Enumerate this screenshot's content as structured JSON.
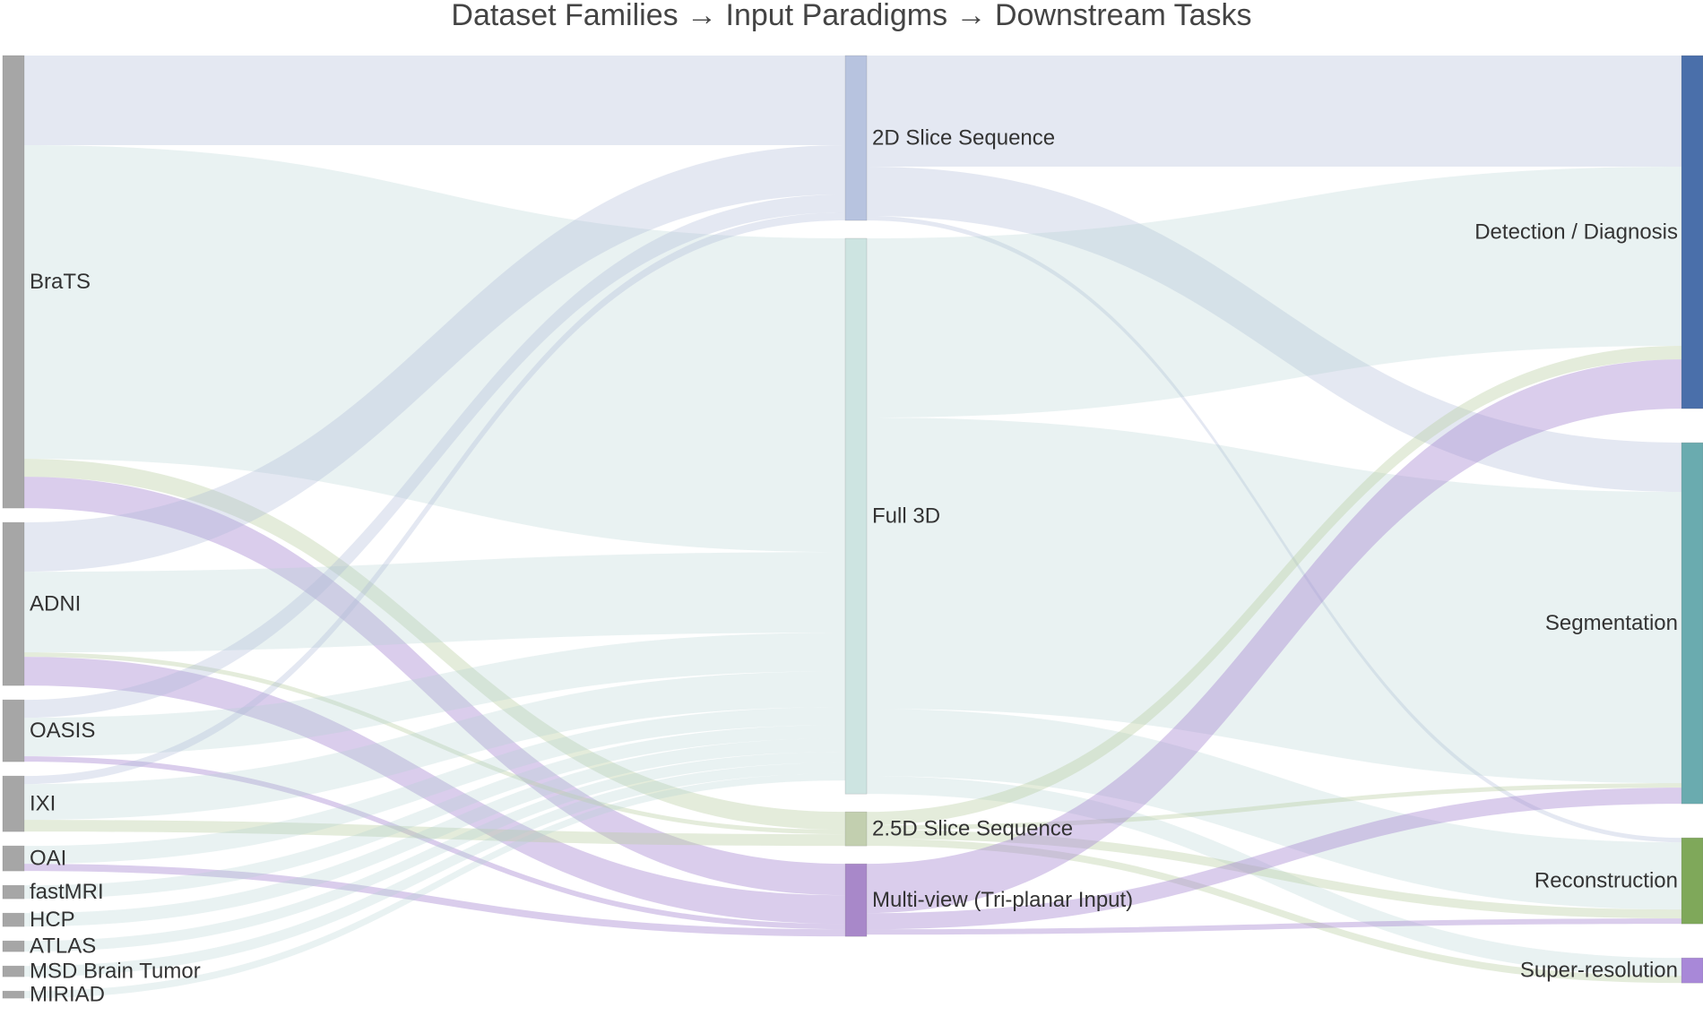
{
  "title": "Dataset Families → Input Paradigms → Downstream Tasks",
  "chart_data": {
    "type": "sankey",
    "columns": [
      "Dataset Families",
      "Input Paradigms",
      "Downstream Tasks"
    ],
    "nodes": [
      {
        "id": "brats",
        "label": "BraTS",
        "column": 0,
        "color": "#a6a6a6"
      },
      {
        "id": "adni",
        "label": "ADNI",
        "column": 0,
        "color": "#a6a6a6"
      },
      {
        "id": "oasis",
        "label": "OASIS",
        "column": 0,
        "color": "#a6a6a6"
      },
      {
        "id": "ixi",
        "label": "IXI",
        "column": 0,
        "color": "#a6a6a6"
      },
      {
        "id": "oai",
        "label": "OAI",
        "column": 0,
        "color": "#a6a6a6"
      },
      {
        "id": "fastmri",
        "label": "fastMRI",
        "column": 0,
        "color": "#a6a6a6"
      },
      {
        "id": "hcp",
        "label": "HCP",
        "column": 0,
        "color": "#a6a6a6"
      },
      {
        "id": "atlas",
        "label": "ATLAS",
        "column": 0,
        "color": "#a6a6a6"
      },
      {
        "id": "msd",
        "label": "MSD Brain Tumor",
        "column": 0,
        "color": "#a6a6a6"
      },
      {
        "id": "miriad",
        "label": "MIRIAD",
        "column": 0,
        "color": "#a6a6a6"
      },
      {
        "id": "p2d",
        "label": "2D Slice Sequence",
        "column": 1,
        "color": "#b7c3df"
      },
      {
        "id": "p3d",
        "label": "Full 3D",
        "column": 1,
        "color": "#cde4e1"
      },
      {
        "id": "p25d",
        "label": "2.5D Slice Sequence",
        "column": 1,
        "color": "#c2cfaf"
      },
      {
        "id": "pmv",
        "label": "Multi-view (Tri-planar Input)",
        "column": 1,
        "color": "#a888c9"
      },
      {
        "id": "det",
        "label": "Detection / Diagnosis",
        "column": 2,
        "color": "#4a6faa"
      },
      {
        "id": "seg",
        "label": "Segmentation",
        "column": 2,
        "color": "#6aabaf"
      },
      {
        "id": "rec",
        "label": "Reconstruction",
        "column": 2,
        "color": "#7fa85a"
      },
      {
        "id": "sr",
        "label": "Super-resolution",
        "column": 2,
        "color": "#a888d8"
      }
    ],
    "links": [
      {
        "source": "brats",
        "target": "p2d",
        "value": 10
      },
      {
        "source": "brats",
        "target": "p3d",
        "value": 35
      },
      {
        "source": "brats",
        "target": "p25d",
        "value": 2
      },
      {
        "source": "brats",
        "target": "pmv",
        "value": 3.5
      },
      {
        "source": "adni",
        "target": "p2d",
        "value": 5.5
      },
      {
        "source": "adni",
        "target": "p3d",
        "value": 9
      },
      {
        "source": "adni",
        "target": "p25d",
        "value": 0.5
      },
      {
        "source": "adni",
        "target": "pmv",
        "value": 3.2
      },
      {
        "source": "oasis",
        "target": "p2d",
        "value": 2
      },
      {
        "source": "oasis",
        "target": "p3d",
        "value": 4.3
      },
      {
        "source": "oasis",
        "target": "pmv",
        "value": 0.6
      },
      {
        "source": "ixi",
        "target": "p2d",
        "value": 0.9
      },
      {
        "source": "ixi",
        "target": "p3d",
        "value": 4
      },
      {
        "source": "ixi",
        "target": "p25d",
        "value": 1.3
      },
      {
        "source": "oai",
        "target": "p3d",
        "value": 2
      },
      {
        "source": "oai",
        "target": "pmv",
        "value": 0.8
      },
      {
        "source": "fastmri",
        "target": "p3d",
        "value": 1.5
      },
      {
        "source": "hcp",
        "target": "p3d",
        "value": 1.5
      },
      {
        "source": "atlas",
        "target": "p3d",
        "value": 1.2
      },
      {
        "source": "msd",
        "target": "p3d",
        "value": 1.2
      },
      {
        "source": "miriad",
        "target": "p3d",
        "value": 0.8
      },
      {
        "source": "p2d",
        "target": "det",
        "value": 12.4
      },
      {
        "source": "p2d",
        "target": "seg",
        "value": 5.5
      },
      {
        "source": "p2d",
        "target": "rec",
        "value": 0.5
      },
      {
        "source": "p3d",
        "target": "det",
        "value": 20
      },
      {
        "source": "p3d",
        "target": "seg",
        "value": 32.5
      },
      {
        "source": "p3d",
        "target": "rec",
        "value": 7.5
      },
      {
        "source": "p3d",
        "target": "sr",
        "value": 2
      },
      {
        "source": "p25d",
        "target": "det",
        "value": 1.5
      },
      {
        "source": "p25d",
        "target": "seg",
        "value": 0.5
      },
      {
        "source": "p25d",
        "target": "rec",
        "value": 1
      },
      {
        "source": "p25d",
        "target": "sr",
        "value": 0.8
      },
      {
        "source": "pmv",
        "target": "det",
        "value": 5.5
      },
      {
        "source": "pmv",
        "target": "seg",
        "value": 1.8
      },
      {
        "source": "pmv",
        "target": "rec",
        "value": 0.6
      }
    ]
  }
}
